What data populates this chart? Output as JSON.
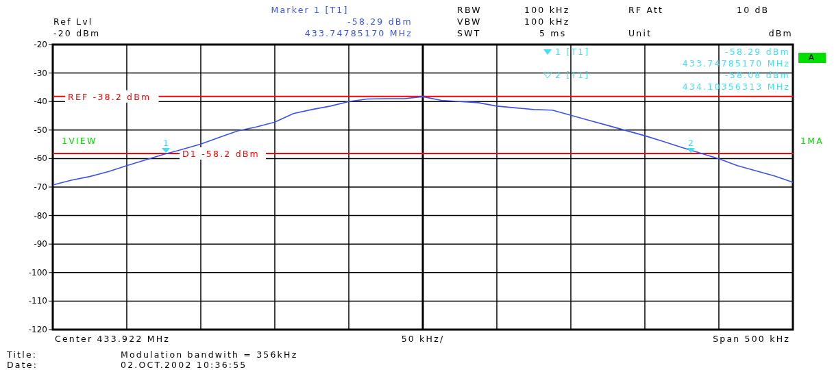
{
  "chart_data": {
    "type": "line",
    "categories": [
      null,
      null,
      null,
      null,
      null,
      null,
      null,
      null,
      null,
      null,
      null,
      null,
      null,
      null,
      null,
      null,
      null,
      null,
      null,
      null,
      null,
      null,
      null,
      null,
      null,
      null,
      null,
      null,
      null,
      null,
      null,
      null,
      null,
      null,
      null,
      null,
      null,
      null,
      null,
      null,
      null
    ],
    "series": [
      {
        "color": "#3c50f0",
        "values": [
          -69.3,
          -67.6,
          -66.3,
          -64.6,
          -62.5,
          -60.5,
          -58.5,
          -56.8,
          -54.9,
          -52.6,
          -50.3,
          -48.9,
          -47.2,
          -44.2,
          -42.8,
          -41.6,
          -40.0,
          -39.1,
          -39.0,
          -39.0,
          -38.3,
          -39.6,
          -40.0,
          -40.4,
          -41.6,
          -42.2,
          -42.8,
          -43.0,
          -44.8,
          -46.6,
          -48.4,
          -50.2,
          -52.0,
          -54.0,
          -56.1,
          -58.1,
          -60.1,
          -62.5,
          -64.3,
          -66.1,
          -68.3
        ]
      }
    ],
    "ylim": [
      -120,
      -20
    ],
    "yticks": [
      -120,
      -110,
      -100,
      -90,
      -80,
      -70,
      -60,
      -50,
      -40,
      -30,
      -20
    ],
    "grid": true,
    "ref_lines": [
      {
        "axis": "y",
        "value": -38.2,
        "label": "REF -38.2 dBm",
        "color": "#ff0000"
      },
      {
        "axis": "y",
        "value": -58.2,
        "label": "D1 -58.2 dBm",
        "color": "#ff0000"
      }
    ],
    "annotations": [
      "Ref Lvl",
      "-20 dBm",
      "Marker 1 [T1]",
      "-58.29 dBm",
      "433.74785170 MHz",
      "RBW",
      "100 kHz",
      "VBW",
      "100 kHz",
      "SWT",
      "5 ms",
      "RF Att",
      "10 dB",
      "Unit",
      "dBm",
      "1 [T1]",
      "-58.29 dBm",
      "433.74785170 MHz",
      "2 [T1]",
      "-58.08 dBm",
      "434.10356313 MHz",
      "1VIEW",
      "1MA",
      "A",
      "Center 433.922 MHz",
      "50 kHz/",
      "Span 500 kHz",
      "Title:",
      "Modulation bandwith = 356kHz",
      "Date:",
      "02.OCT.2002  10:36:55",
      "1",
      "2"
    ]
  }
}
